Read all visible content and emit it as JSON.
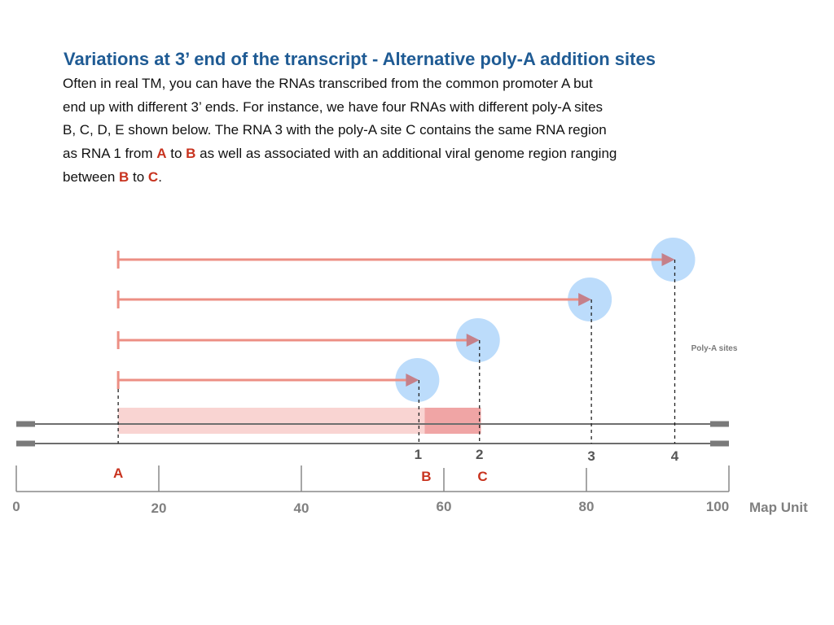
{
  "slide": {
    "title": "Variations at 3’ end of the transcript - Alternative poly-A addition sites",
    "paragraph": [
      {
        "text": "Often in real TM, you can have the RNAs transcribed from the common promoter A but",
        "hl": false
      },
      {
        "text": "\nend up with different 3’ ends. For instance, we have four RNAs with different poly-A sites",
        "hl": false
      },
      {
        "text": "\nB, C, D, E shown below. The RNA 3 with the poly-A site C contains the same RNA region",
        "hl": false
      },
      {
        "text": "\nas RNA 1 from ",
        "hl": false
      },
      {
        "text": "A",
        "hl": true
      },
      {
        "text": " to ",
        "hl": false
      },
      {
        "text": "B",
        "hl": true
      },
      {
        "text": " as well as associated with an additional viral genome region ranging",
        "hl": false
      },
      {
        "text": "\nbetween ",
        "hl": false
      },
      {
        "text": "B",
        "hl": true
      },
      {
        "text": " to ",
        "hl": false
      },
      {
        "text": "C",
        "hl": true
      },
      {
        "text": ".",
        "hl": false
      }
    ]
  },
  "diagram": {
    "map_unit_label": "Map Unit",
    "scale_max": 100,
    "promoter": {
      "label": "A",
      "position": 14.3
    },
    "poly_a_label": "Poly-A sites",
    "transcripts": [
      {
        "poly_a_site": "4",
        "end": 92.4
      },
      {
        "poly_a_site": "3",
        "end": 80.7
      },
      {
        "poly_a_site": "2",
        "end": 65.0
      },
      {
        "poly_a_site": "1",
        "end": 56.5
      }
    ],
    "site_letters": [
      {
        "label": "B",
        "position": 57.3
      },
      {
        "label": "C",
        "position": 65.2
      }
    ],
    "region_light": {
      "from": 14.3,
      "to": 57.3
    },
    "region_dark": {
      "from": 57.3,
      "to": 65.2
    },
    "ticks": [
      {
        "value": 0,
        "label": "0",
        "tall": true,
        "label_offset": 0
      },
      {
        "value": 20,
        "label": "20",
        "tall": true,
        "label_offset": 0
      },
      {
        "value": 40,
        "label": "40",
        "tall": true,
        "label_offset": 0
      },
      {
        "value": 60,
        "label": "60",
        "tall": false,
        "label_offset": 0
      },
      {
        "value": 80,
        "label": "80",
        "tall": false,
        "label_offset": 0
      },
      {
        "value": 100,
        "label": "100",
        "tall": true,
        "label_offset": -14
      }
    ],
    "colors": {
      "arrow": "#ec8f84",
      "arrowhead": "#c5808a",
      "circle": "#bcdcfb",
      "region_light": "#f9d4d2",
      "region_dark": "#f0a5a5",
      "genome": "#6e6e6e",
      "genome_end": "#7a7a7a",
      "scale": "#888888",
      "dash": "#222222",
      "highlight": "#c8331f"
    }
  }
}
